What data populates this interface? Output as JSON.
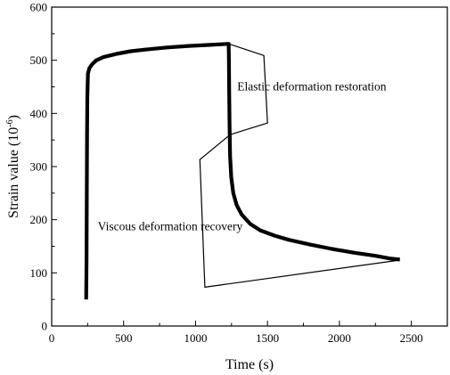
{
  "chart_data": {
    "type": "line",
    "xlabel": "Time (s)",
    "ylabel": {
      "base": "Strain value (10",
      "sup": "-6",
      "tail": ")"
    },
    "xlim": [
      0,
      2750
    ],
    "ylim": [
      0,
      600
    ],
    "x_ticks": [
      0,
      500,
      1000,
      1500,
      2000,
      2500
    ],
    "y_ticks": [
      0,
      100,
      200,
      300,
      400,
      500,
      600
    ],
    "grid": false,
    "series": [
      {
        "points": [
          [
            240,
            50
          ],
          [
            242,
            120
          ],
          [
            244,
            250
          ],
          [
            246,
            360
          ],
          [
            248,
            430
          ],
          [
            252,
            475
          ],
          [
            262,
            485
          ],
          [
            280,
            492
          ],
          [
            310,
            500
          ],
          [
            360,
            506
          ],
          [
            450,
            512
          ],
          [
            550,
            517
          ],
          [
            650,
            520
          ],
          [
            800,
            524
          ],
          [
            950,
            527
          ],
          [
            1100,
            529
          ],
          [
            1230,
            531
          ],
          [
            1232,
            500
          ],
          [
            1234,
            440
          ],
          [
            1236,
            380
          ],
          [
            1240,
            320
          ],
          [
            1248,
            280
          ],
          [
            1262,
            250
          ],
          [
            1285,
            228
          ],
          [
            1320,
            210
          ],
          [
            1380,
            192
          ],
          [
            1450,
            180
          ],
          [
            1550,
            170
          ],
          [
            1650,
            162
          ],
          [
            1800,
            153
          ],
          [
            1950,
            145
          ],
          [
            2100,
            138
          ],
          [
            2250,
            132
          ],
          [
            2350,
            127
          ],
          [
            2420,
            125
          ]
        ]
      }
    ],
    "annotations": [
      {
        "text": "Elastic deformation restoration",
        "text_at": [
          1290,
          443
        ],
        "lines": [
          [
            [
              1230,
              531
            ],
            [
              1475,
              509
            ],
            [
              1500,
              382
            ],
            [
              1240,
              360
            ]
          ]
        ]
      },
      {
        "text": "Viscous deformation recovery",
        "text_at": [
          320,
          180
        ],
        "lines": [
          [
            [
              1240,
              360
            ],
            [
              1030,
              313
            ],
            [
              1065,
              73
            ],
            [
              2420,
              124
            ]
          ]
        ]
      }
    ]
  }
}
